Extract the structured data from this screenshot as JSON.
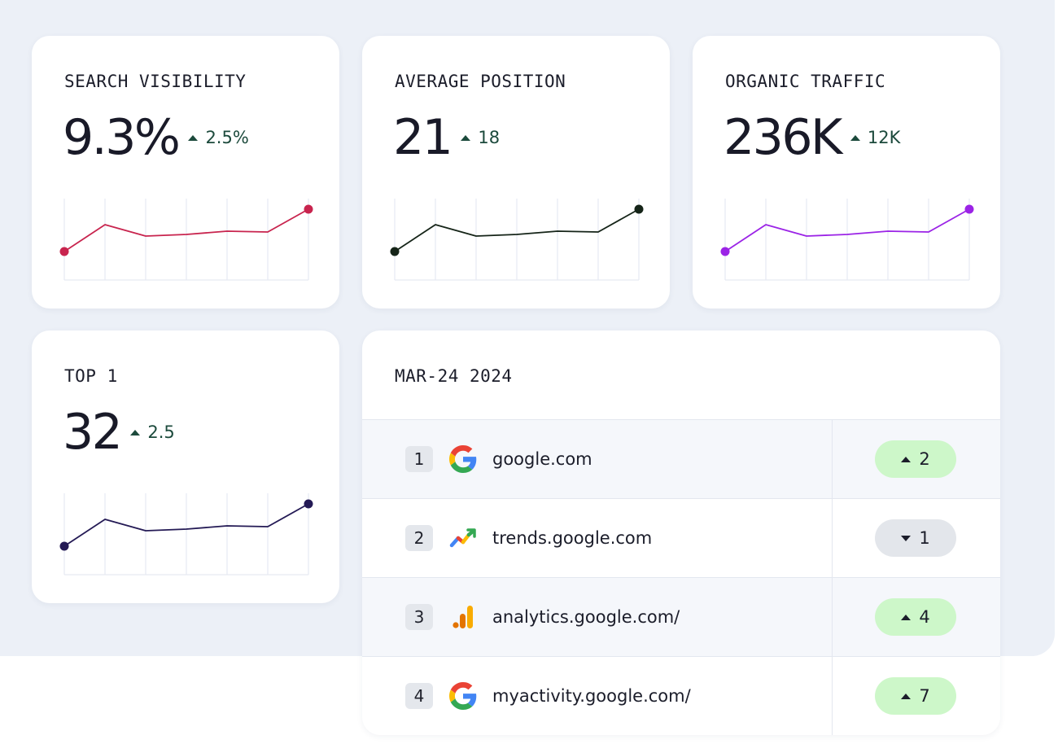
{
  "metrics": [
    {
      "title": "SEARCH VISIBILITY",
      "value": "9.3%",
      "delta": "2.5%",
      "trend": "up",
      "color": "#c8244e",
      "sparkline": [
        0.35,
        0.68,
        0.54,
        0.56,
        0.6,
        0.59,
        0.87
      ]
    },
    {
      "title": "AVERAGE POSITION",
      "value": "21",
      "delta": "18",
      "trend": "up",
      "color": "#152418",
      "sparkline": [
        0.35,
        0.68,
        0.54,
        0.56,
        0.6,
        0.59,
        0.87
      ]
    },
    {
      "title": "ORGANIC TRAFFIC",
      "value": "236K",
      "delta": "12K",
      "trend": "up",
      "color": "#9b23e6",
      "sparkline": [
        0.35,
        0.68,
        0.54,
        0.56,
        0.6,
        0.59,
        0.87
      ]
    },
    {
      "title": "TOP 1",
      "value": "32",
      "delta": "2.5",
      "trend": "up",
      "color": "#241a55",
      "sparkline": [
        0.35,
        0.68,
        0.54,
        0.56,
        0.6,
        0.59,
        0.87
      ]
    }
  ],
  "table": {
    "date": "MAR-24 2024",
    "rows": [
      {
        "rank": "1",
        "icon": "google-g-icon",
        "domain": "google.com",
        "change": "2",
        "direction": "up"
      },
      {
        "rank": "2",
        "icon": "trends-icon",
        "domain": "trends.google.com",
        "change": "1",
        "direction": "down"
      },
      {
        "rank": "3",
        "icon": "analytics-icon",
        "domain": "analytics.google.com/",
        "change": "4",
        "direction": "up"
      },
      {
        "rank": "4",
        "icon": "google-g-icon",
        "domain": "myactivity.google.com/",
        "change": "7",
        "direction": "up"
      }
    ]
  },
  "colors": {
    "background": "#ecf0f7",
    "up_pill": "#cdf7c9",
    "down_pill": "#e3e6eb",
    "delta_text": "#1c4a3c"
  }
}
